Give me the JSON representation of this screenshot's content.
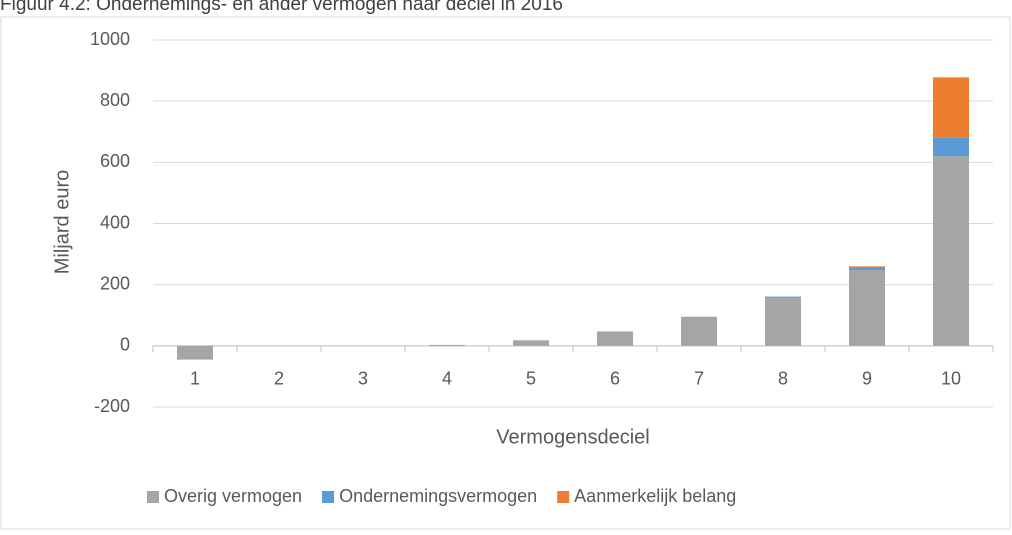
{
  "chart_data": {
    "type": "bar",
    "stacked": true,
    "title": "Figuur 4.2: Ondernemings- en ander vermogen naar deciel in 2016",
    "xlabel": "Vermogensdeciel",
    "ylabel": "Miljard euro",
    "categories": [
      "1",
      "2",
      "3",
      "4",
      "5",
      "6",
      "7",
      "8",
      "9",
      "10"
    ],
    "series": [
      {
        "name": "Overig vermogen",
        "color": "#a5a5a5",
        "values": [
          -45,
          0,
          0,
          3,
          18,
          47,
          93,
          157,
          248,
          620
        ]
      },
      {
        "name": "Ondernemingsvermogen",
        "color": "#5b9bd5",
        "values": [
          0,
          0,
          0,
          0,
          0,
          0,
          2,
          4,
          8,
          60
        ]
      },
      {
        "name": "Aanmerkelijk belang",
        "color": "#ed7d31",
        "values": [
          0,
          0,
          0,
          0,
          0,
          0,
          0,
          0,
          4,
          198
        ]
      }
    ],
    "ylim": [
      -200,
      1000
    ],
    "yticks": [
      -200,
      0,
      200,
      400,
      600,
      800,
      1000
    ],
    "grid": true,
    "legend": "bottom"
  }
}
